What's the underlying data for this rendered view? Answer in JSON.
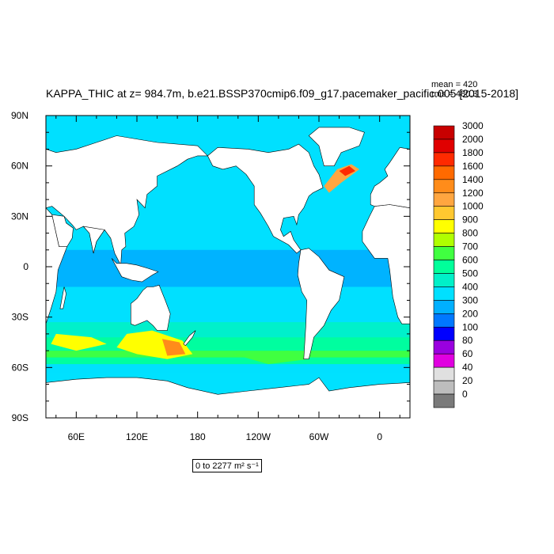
{
  "title": "KAPPA_THIC at z= 984.7m, b.e21.BSSP370cmip6.f09_g17.pacemaker_pacific.005 [2015-2018]",
  "stats": {
    "mean": "mean = 420",
    "rms": "rms = 480.3"
  },
  "range_label": {
    "text": "0 to 2277",
    "unit": "m² s⁻¹"
  },
  "chart_data": {
    "type": "heatmap",
    "variable": "KAPPA_THIC",
    "depth": "984.7m",
    "case": "b.e21.BSSP370cmip6.f09_g17.pacemaker_pacific.005",
    "period": "[2015-2018]",
    "mean": 420,
    "rms": 480.3,
    "min": 0,
    "max": 2277,
    "units": "m2 s-1",
    "lon_range": [
      30,
      390
    ],
    "lat_range": [
      -90,
      90
    ],
    "x_ticks": [
      "60E",
      "120E",
      "180",
      "120W",
      "60W",
      "0"
    ],
    "y_ticks": [
      "90N",
      "60N",
      "30N",
      "0",
      "30S",
      "60S",
      "90S"
    ],
    "colorbar_levels": [
      "3000",
      "2000",
      "1800",
      "1600",
      "1400",
      "1200",
      "1000",
      "900",
      "800",
      "700",
      "600",
      "500",
      "400",
      "300",
      "200",
      "100",
      "80",
      "60",
      "40",
      "20",
      "0"
    ],
    "colorbar_colors": [
      "#c80000",
      "#e00000",
      "#ff2a00",
      "#ff6a00",
      "#ff8c1a",
      "#ffa640",
      "#ffc830",
      "#ffff00",
      "#b0ff00",
      "#40ff40",
      "#00ff9a",
      "#00f0c8",
      "#00e0ff",
      "#00b0ff",
      "#0078ff",
      "#0000ff",
      "#9a00e0",
      "#e000e0",
      "#e0e0e0",
      "#bdbdbd",
      "#7a7a7a"
    ],
    "grid": false,
    "legend": "right"
  }
}
